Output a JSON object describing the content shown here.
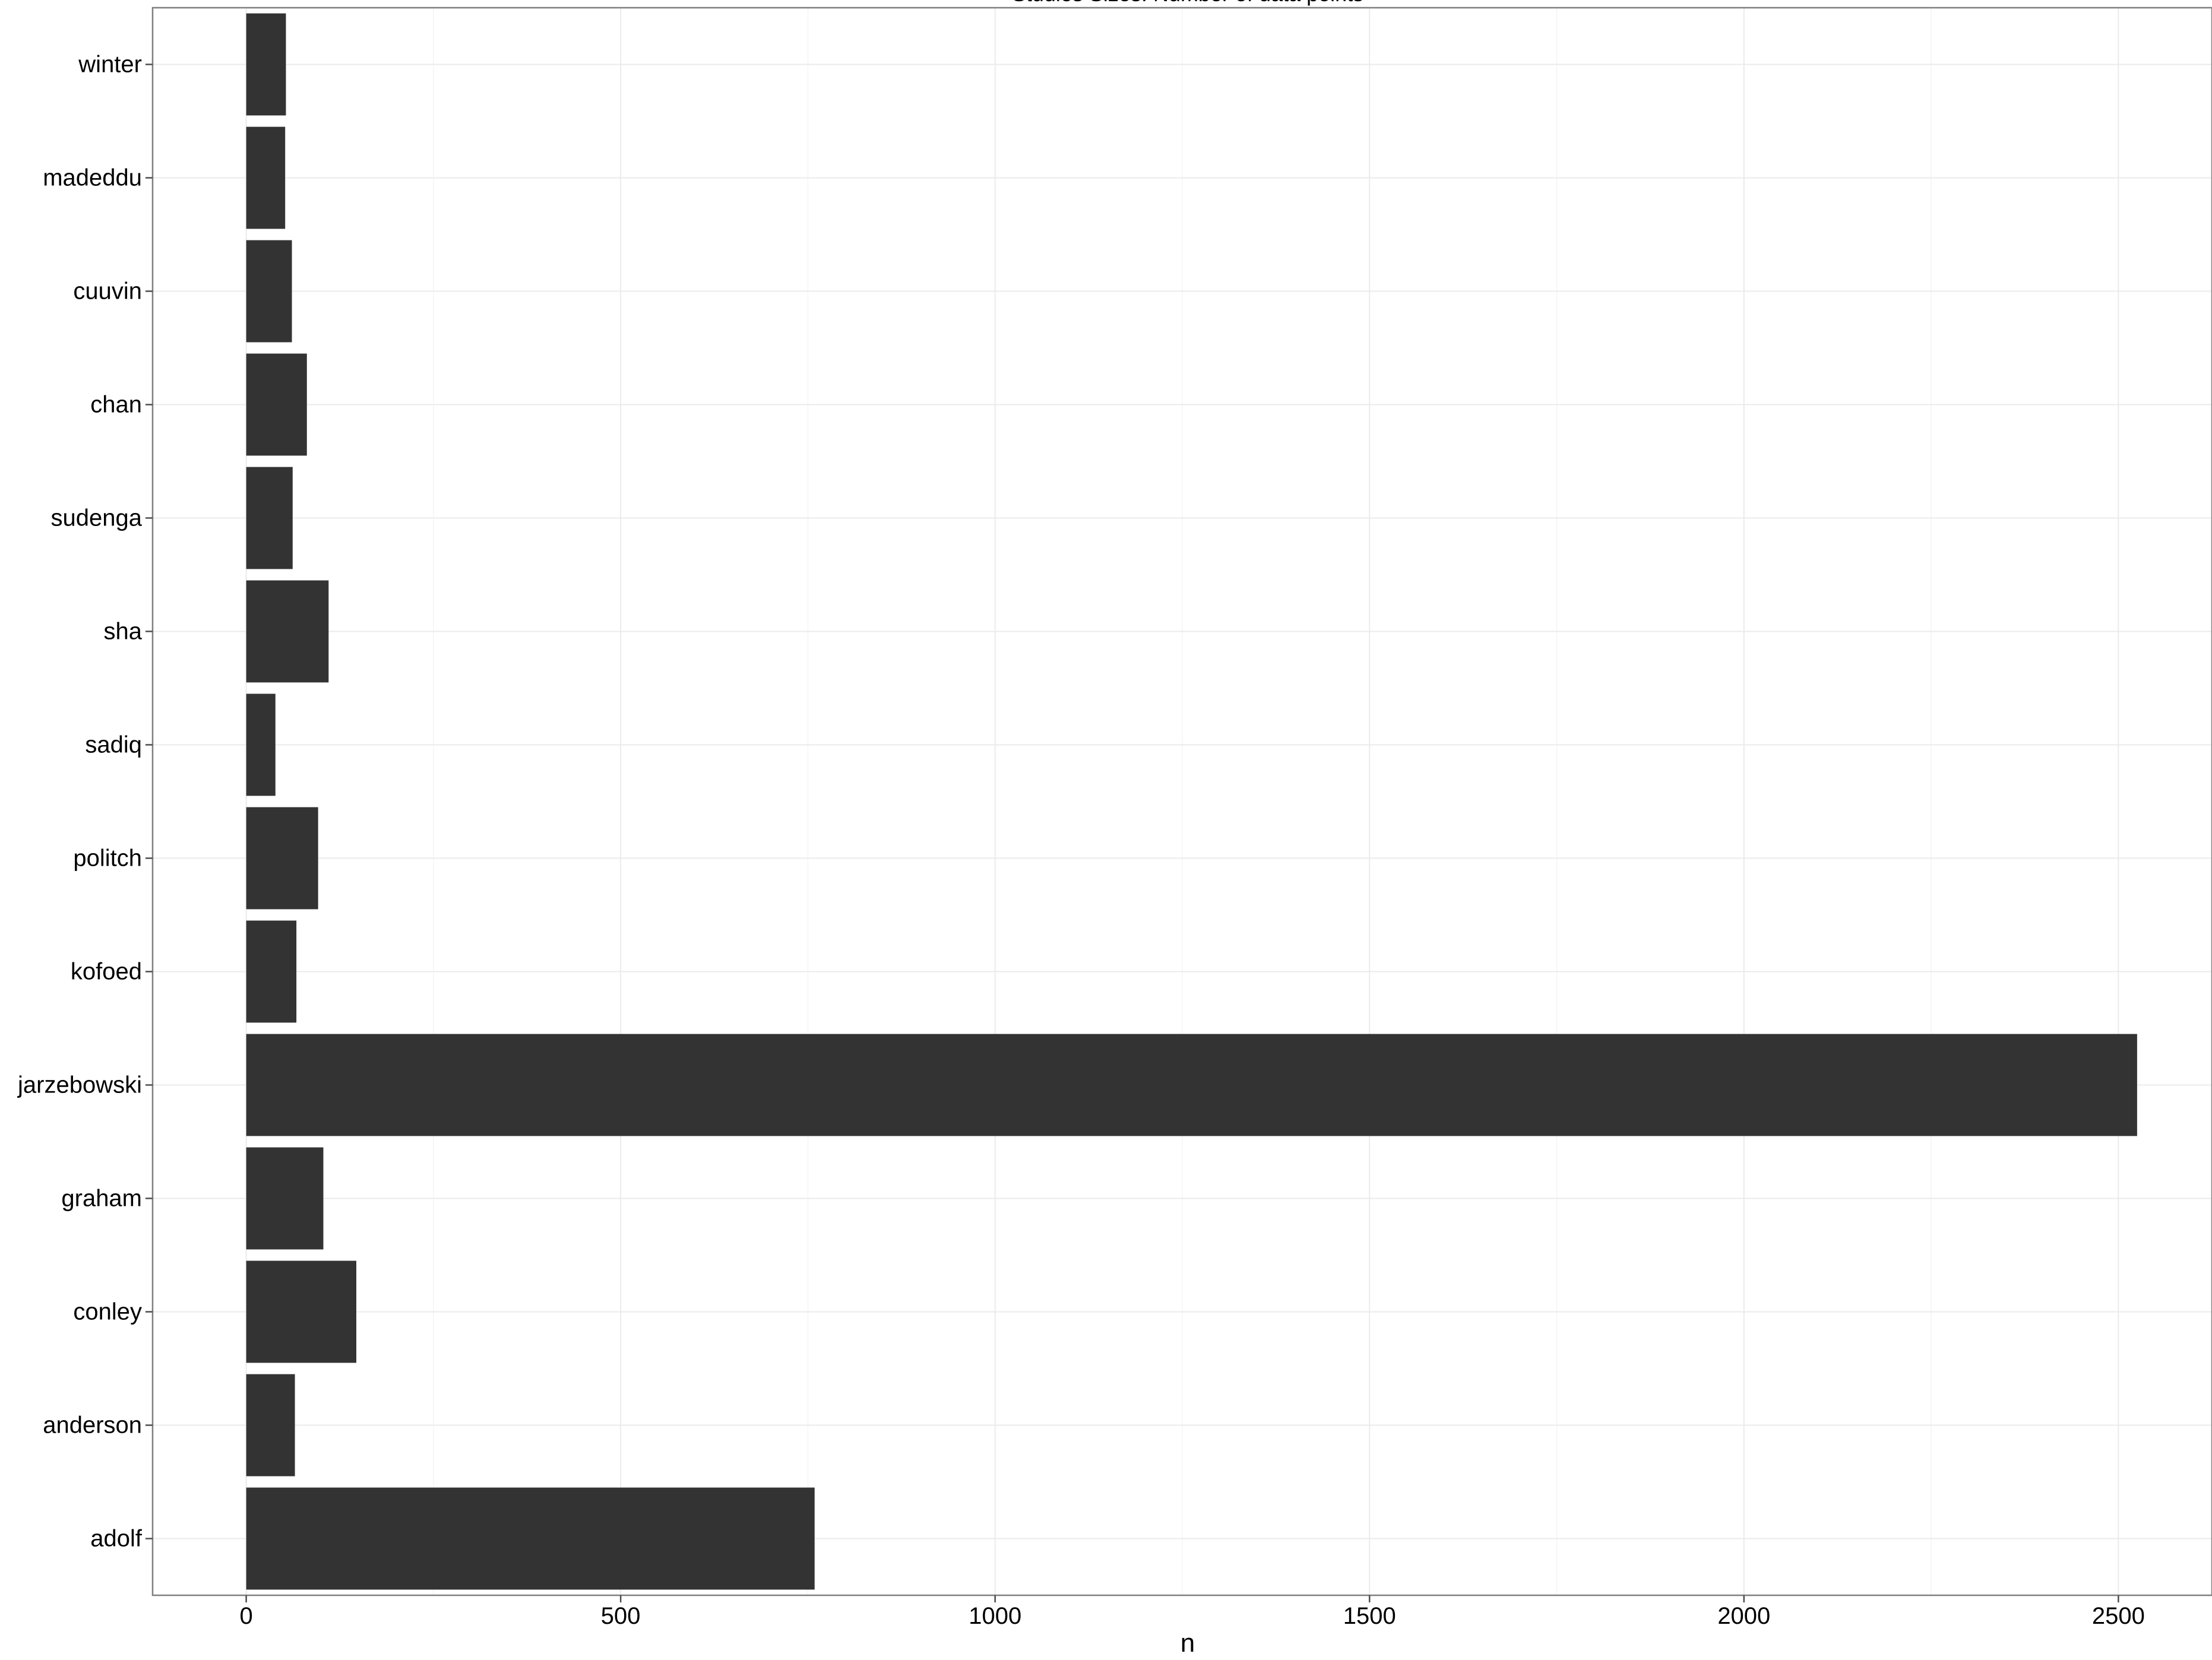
{
  "chart_data": {
    "type": "bar",
    "orientation": "horizontal",
    "title": "Studies Sizes: Number of data points",
    "xlabel": "n",
    "ylabel": "",
    "xlim": [
      -125,
      2625
    ],
    "x_ticks": [
      0,
      500,
      1000,
      1500,
      2000,
      2500
    ],
    "x_tick_labels": [
      "0",
      "500",
      "1000",
      "1500",
      "2000",
      "2500"
    ],
    "grid": true,
    "legend": "none",
    "categories": [
      "winter",
      "madeddu",
      "cuuvin",
      "chan",
      "sudenga",
      "sha",
      "sadiq",
      "politch",
      "kofoed",
      "jarzebowski",
      "graham",
      "conley",
      "anderson",
      "adolf"
    ],
    "values": [
      53,
      52,
      61,
      81,
      62,
      110,
      39,
      96,
      67,
      2525,
      103,
      147,
      65,
      759
    ],
    "colors": {
      "bar": "#333333",
      "grid_major": "#ebebeb",
      "grid_minor": "#f5f5f5",
      "panel_border": "#7f7f7f",
      "tick": "#4d4d4d"
    }
  }
}
